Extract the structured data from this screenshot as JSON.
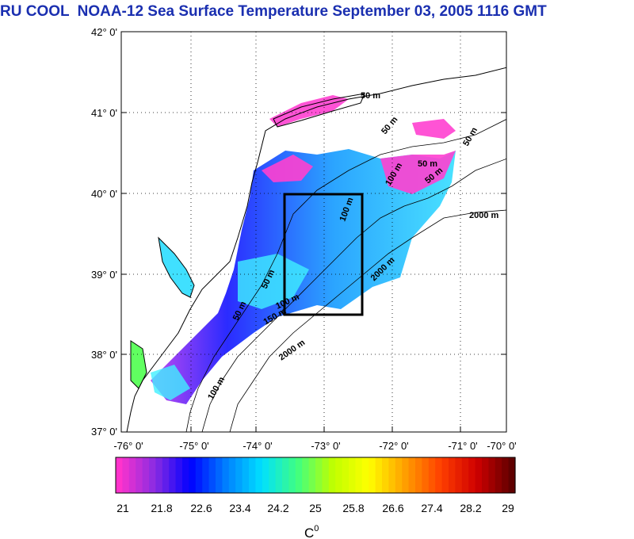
{
  "title": {
    "prefix": "RU COOL",
    "text": "NOAA-12 Sea Surface Temperature September 03, 2005 1116 GMT"
  },
  "map": {
    "lat_labels": [
      "42° 0'",
      "41° 0'",
      "40° 0'",
      "39° 0'",
      "38° 0'",
      "37° 0'"
    ],
    "lon_labels": [
      "-76° 0'",
      "-75° 0'",
      "-74° 0'",
      "-73° 0'",
      "-72° 0'",
      "-71° 0'",
      "-70° 0'"
    ],
    "lat_range": [
      37,
      42
    ],
    "lon_range": [
      -76,
      -70
    ],
    "study_box": {
      "lon_min": -73.5,
      "lon_max": -72.5,
      "lat_min": 38.5,
      "lat_max": 40.0
    },
    "contour_labels": [
      {
        "text": "50 m",
        "lon": -73.05,
        "lat": 41.2
      },
      {
        "text": "50 m",
        "lon": -72.6,
        "lat": 40.85
      },
      {
        "text": "50 m",
        "lon": -71.55,
        "lat": 40.9
      },
      {
        "text": "50 m",
        "lon": -72.3,
        "lat": 40.1
      },
      {
        "text": "50 m",
        "lon": -71.65,
        "lat": 40.15
      },
      {
        "text": "50 m",
        "lon": -73.3,
        "lat": 39.15
      },
      {
        "text": "50 m",
        "lon": -74.3,
        "lat": 38.55
      },
      {
        "text": "100 m",
        "lon": -73.6,
        "lat": 38.65
      },
      {
        "text": "100 m",
        "lon": -71.95,
        "lat": 40.15
      },
      {
        "text": "100 m",
        "lon": -72.75,
        "lat": 39.85
      },
      {
        "text": "100 m",
        "lon": -74.7,
        "lat": 37.45
      },
      {
        "text": "150 m",
        "lon": -73.9,
        "lat": 38.4
      },
      {
        "text": "2000 m",
        "lon": -73.05,
        "lat": 38.15
      },
      {
        "text": "2000 m",
        "lon": -72.45,
        "lat": 39.1
      },
      {
        "text": "2000 m",
        "lon": -71.5,
        "lat": 39.7
      }
    ]
  },
  "colorbar": {
    "ticks": [
      "21",
      "21.8",
      "22.6",
      "23.4",
      "24.2",
      "25",
      "25.8",
      "26.6",
      "27.4",
      "28.2",
      "29"
    ],
    "unit_base": "C",
    "unit_sup": "0",
    "colors": [
      "#ff33cc",
      "#8a2be2",
      "#0000ff",
      "#0080ff",
      "#00e0ff",
      "#40ff80",
      "#c0ff00",
      "#ffff00",
      "#ffa000",
      "#ff4000",
      "#d00000",
      "#600000"
    ]
  }
}
